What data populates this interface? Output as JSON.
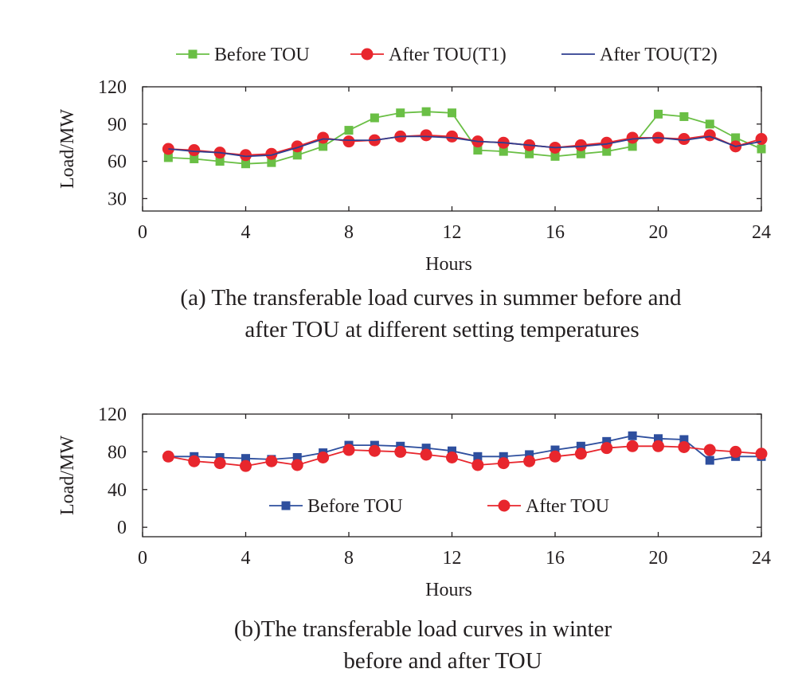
{
  "chart_data": [
    {
      "type": "line",
      "xlabel": "Hours",
      "ylabel": "Load/MW",
      "xlim": [
        0,
        24
      ],
      "ylim": [
        20,
        120
      ],
      "xticks": [
        0,
        4,
        8,
        12,
        16,
        20,
        24
      ],
      "yticks": [
        30,
        60,
        90,
        120
      ],
      "grid": false,
      "legend_position": "top",
      "caption": [
        "(a) The transferable load curves in summer before and",
        "after TOU at different setting temperatures"
      ],
      "x": [
        1,
        2,
        3,
        4,
        5,
        6,
        7,
        8,
        9,
        10,
        11,
        12,
        13,
        14,
        15,
        16,
        17,
        18,
        19,
        20,
        21,
        22,
        23,
        24
      ],
      "series": [
        {
          "name": "Before TOU",
          "color": "#6abf45",
          "marker": "square",
          "values": [
            63,
            62,
            60,
            58,
            59,
            65,
            72,
            85,
            95,
            99,
            100,
            99,
            69,
            68,
            66,
            64,
            66,
            68,
            72,
            98,
            96,
            90,
            79,
            70
          ]
        },
        {
          "name": "After TOU(T1)",
          "color": "#e8262d",
          "marker": "circle",
          "values": [
            70,
            69,
            67,
            65,
            66,
            72,
            79,
            76,
            77,
            80,
            81,
            80,
            76,
            75,
            73,
            71,
            73,
            75,
            79,
            79,
            78,
            81,
            72,
            78
          ]
        },
        {
          "name": "After TOU(T2)",
          "color": "#2e3d8f",
          "marker": "none",
          "values": [
            70,
            68,
            67,
            64,
            65,
            71,
            78,
            77,
            77,
            80,
            80,
            79,
            76,
            75,
            73,
            71,
            72,
            74,
            78,
            79,
            77,
            80,
            72,
            76
          ]
        }
      ]
    },
    {
      "type": "line",
      "xlabel": "Hours",
      "ylabel": "Load/MW",
      "xlim": [
        0,
        24
      ],
      "ylim": [
        -10,
        120
      ],
      "xticks": [
        0,
        4,
        8,
        12,
        16,
        20,
        24
      ],
      "yticks": [
        0,
        40,
        80,
        120
      ],
      "grid": false,
      "legend_position": "bottom",
      "caption": [
        "(b)The transferable load curves in winter",
        "before and after TOU"
      ],
      "x": [
        1,
        2,
        3,
        4,
        5,
        6,
        7,
        8,
        9,
        10,
        11,
        12,
        13,
        14,
        15,
        16,
        17,
        18,
        19,
        20,
        21,
        22,
        23,
        24
      ],
      "series": [
        {
          "name": "Before TOU",
          "color": "#2e4f9e",
          "marker": "square",
          "values": [
            75,
            75,
            74,
            73,
            72,
            74,
            79,
            87,
            87,
            86,
            84,
            81,
            75,
            75,
            77,
            82,
            86,
            91,
            97,
            94,
            93,
            71,
            75,
            75
          ]
        },
        {
          "name": "After TOU",
          "color": "#e8262d",
          "marker": "circle",
          "values": [
            75,
            70,
            68,
            65,
            70,
            66,
            74,
            82,
            81,
            80,
            77,
            74,
            66,
            68,
            70,
            75,
            78,
            84,
            86,
            86,
            85,
            82,
            80,
            78
          ]
        }
      ]
    }
  ]
}
